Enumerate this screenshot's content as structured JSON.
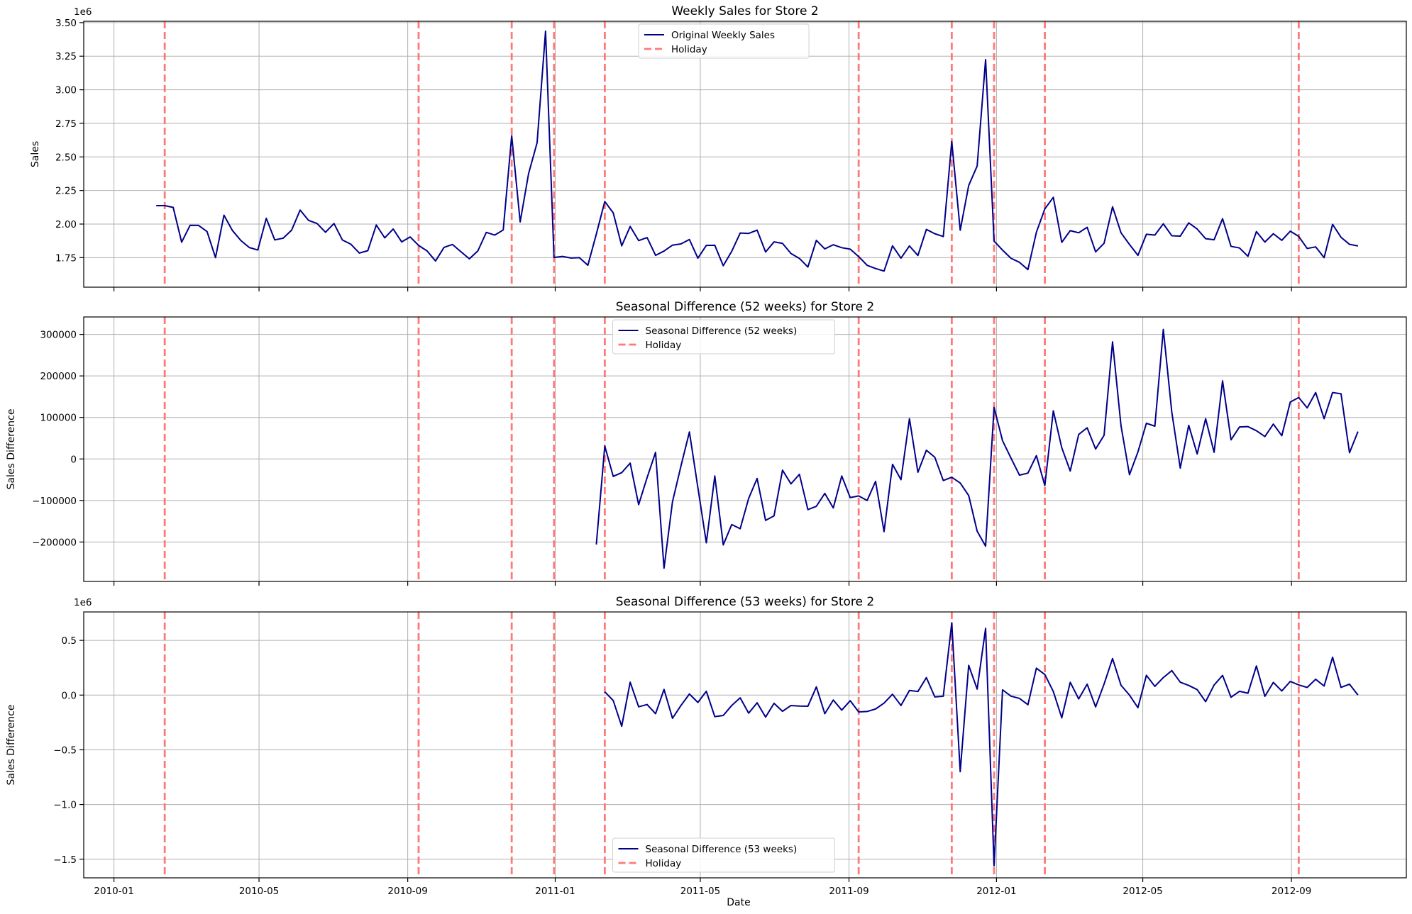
{
  "colors": {
    "series": "#00008b",
    "holiday": "#ff6b6b",
    "grid": "#b0b0b0"
  },
  "chart_data": {
    "type": "line",
    "shared": {
      "xlabel": "Date",
      "xlim": [
        "2009-12-07",
        "2012-12-05"
      ],
      "x_ticks": [
        "2010-01-01",
        "2010-05-01",
        "2010-09-01",
        "2011-01-01",
        "2011-05-01",
        "2011-09-01",
        "2012-01-01",
        "2012-05-01",
        "2012-09-01"
      ],
      "x_tick_labels": [
        "2010-01",
        "2010-05",
        "2010-09",
        "2011-01",
        "2011-05",
        "2011-09",
        "2012-01",
        "2012-05",
        "2012-09"
      ],
      "holidays": [
        "2010-02-12",
        "2010-09-10",
        "2010-11-26",
        "2010-12-31",
        "2011-02-11",
        "2011-09-09",
        "2011-11-25",
        "2011-12-30",
        "2012-02-10",
        "2012-09-07"
      ],
      "holiday_label": "Holiday",
      "grid": true,
      "start_date": "2010-02-05",
      "week_step_days": 7
    },
    "panels": [
      {
        "title": "Weekly Sales for Store 2",
        "ylabel": "Sales",
        "offset_text": "1e6",
        "ylim": [
          1.53,
          3.51
        ],
        "y_ticks": [
          1.75,
          2.0,
          2.25,
          2.5,
          2.75,
          3.0,
          3.25,
          3.5
        ],
        "y_tick_labels": [
          "1.75",
          "2.00",
          "2.25",
          "2.50",
          "2.75",
          "3.00",
          "3.25",
          "3.50"
        ],
        "legend_position": "upper center",
        "series_name": "Original Weekly Sales",
        "first_index": 0,
        "values": [
          2.137,
          2.137,
          2.124,
          1.865,
          1.991,
          1.99,
          1.944,
          1.75,
          2.066,
          1.952,
          1.877,
          1.825,
          1.807,
          2.043,
          1.882,
          1.895,
          1.955,
          2.104,
          2.027,
          2.004,
          1.939,
          2.004,
          1.881,
          1.85,
          1.784,
          1.802,
          1.993,
          1.897,
          1.963,
          1.867,
          1.904,
          1.841,
          1.8,
          1.725,
          1.826,
          1.848,
          1.794,
          1.741,
          1.8,
          1.938,
          1.918,
          1.956,
          2.658,
          2.016,
          2.377,
          2.605,
          3.436,
          1.751,
          1.759,
          1.747,
          1.75,
          1.693,
          1.925,
          2.168,
          2.083,
          1.838,
          1.982,
          1.877,
          1.899,
          1.767,
          1.799,
          1.843,
          1.852,
          1.885,
          1.746,
          1.841,
          1.842,
          1.69,
          1.797,
          1.933,
          1.93,
          1.955,
          1.792,
          1.867,
          1.856,
          1.781,
          1.744,
          1.68,
          1.879,
          1.815,
          1.846,
          1.824,
          1.813,
          1.758,
          1.693,
          1.669,
          1.65,
          1.838,
          1.746,
          1.837,
          1.766,
          1.96,
          1.928,
          1.907,
          2.614,
          1.954,
          2.287,
          2.432,
          3.225,
          1.873,
          1.806,
          1.745,
          1.715,
          1.661,
          1.939,
          2.113,
          2.199,
          1.864,
          1.951,
          1.935,
          1.976,
          1.793,
          1.857,
          2.129,
          1.935,
          1.848,
          1.767,
          1.924,
          1.918,
          2.002,
          1.913,
          1.91,
          2.009,
          1.963,
          1.891,
          1.883,
          2.04,
          1.834,
          1.822,
          1.76,
          1.944,
          1.866,
          1.928,
          1.879,
          1.947,
          1.908,
          1.818,
          1.83,
          1.75,
          1.998,
          1.901,
          1.849,
          1.837
        ]
      },
      {
        "title": "Seasonal Difference (52 weeks) for Store 2",
        "ylabel": "Sales Difference",
        "offset_text": "",
        "ylim": [
          -295000,
          342000
        ],
        "y_ticks": [
          -200000,
          -100000,
          0,
          100000,
          200000,
          300000
        ],
        "y_tick_labels": [
          "−200000",
          "−100000",
          "0",
          "100000",
          "200000",
          "300000"
        ],
        "legend_position": "upper center",
        "series_name": "Seasonal Difference (52 weeks)",
        "first_index": 52,
        "values": [
          -206000,
          31000,
          -42000,
          -33000,
          -10000,
          -110000,
          -45000,
          16000,
          -263000,
          -103000,
          -17000,
          65000,
          -69000,
          -202000,
          -41000,
          -207000,
          -158000,
          -168000,
          -95000,
          -47000,
          -148000,
          -137000,
          -27000,
          -60000,
          -37000,
          -122000,
          -114000,
          -83000,
          -118000,
          -41000,
          -93000,
          -89000,
          -100000,
          -54000,
          -175000,
          -13000,
          -50000,
          97000,
          -32000,
          21000,
          4000,
          -52000,
          -44000,
          -58000,
          -88000,
          -174000,
          -210000,
          124000,
          44000,
          2000,
          -39000,
          -34000,
          8000,
          -64000,
          116000,
          27000,
          -29000,
          59000,
          75000,
          24000,
          57000,
          282000,
          80000,
          -38000,
          17000,
          86000,
          79000,
          312000,
          113000,
          -22000,
          81000,
          12000,
          97000,
          16000,
          188000,
          46000,
          77000,
          78000,
          68000,
          54000,
          84000,
          56000,
          137000,
          148000,
          123000,
          160000,
          97000,
          160000,
          157000,
          15000,
          66000
        ]
      },
      {
        "title": "Seasonal Difference (53 weeks) for Store 2",
        "ylabel": "Sales Difference",
        "offset_text": "1e6",
        "ylim": [
          -1.67,
          0.76
        ],
        "y_ticks": [
          -1.5,
          -1.0,
          -0.5,
          0.0,
          0.5
        ],
        "y_tick_labels": [
          "−1.5",
          "−1.0",
          "−0.5",
          "0.0",
          "0.5"
        ],
        "legend_position": "lower center",
        "series_name": "Seasonal Difference (53 weeks)",
        "first_index": 53,
        "values": [
          0.03,
          -0.05,
          -0.285,
          0.118,
          -0.107,
          -0.086,
          -0.17,
          0.052,
          -0.212,
          -0.095,
          0.01,
          -0.067,
          0.035,
          -0.197,
          -0.186,
          -0.095,
          -0.025,
          -0.165,
          -0.07,
          -0.201,
          -0.075,
          -0.148,
          -0.095,
          -0.1,
          -0.102,
          0.075,
          -0.17,
          -0.045,
          -0.137,
          -0.051,
          -0.154,
          -0.15,
          -0.127,
          -0.073,
          0.008,
          -0.095,
          0.042,
          0.033,
          0.16,
          -0.017,
          -0.01,
          0.66,
          -0.7,
          0.272,
          0.055,
          0.61,
          -1.56,
          0.048,
          -0.01,
          -0.03,
          -0.088,
          0.246,
          0.188,
          0.033,
          -0.208,
          0.117,
          -0.035,
          0.1,
          -0.108,
          0.101,
          0.334,
          0.09,
          0.0,
          -0.115,
          0.181,
          0.08,
          0.16,
          0.224,
          0.118,
          0.088,
          0.05,
          -0.06,
          0.092,
          0.18,
          -0.02,
          0.035,
          0.017,
          0.266,
          -0.011,
          0.116,
          0.038,
          0.125,
          0.093,
          0.07,
          0.145,
          0.083,
          0.346,
          0.07,
          0.1,
          0.0
        ]
      }
    ]
  }
}
